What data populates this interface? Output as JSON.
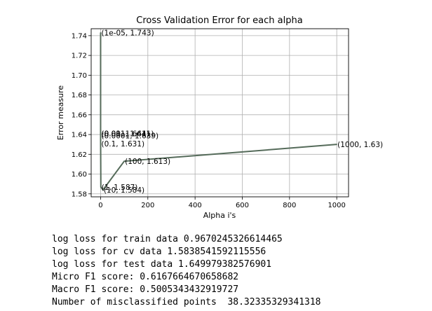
{
  "chart_data": {
    "type": "line",
    "title": "Cross Validation Error for each alpha",
    "xlabel": "Alpha i's",
    "ylabel": "Error measure",
    "xlim": [
      -40,
      1050
    ],
    "ylim": [
      1.577,
      1.747
    ],
    "x_ticks": [
      0,
      200,
      400,
      600,
      800,
      1000
    ],
    "x_tick_labels": [
      "0",
      "200",
      "400",
      "600",
      "800",
      "1000"
    ],
    "y_ticks": [
      1.58,
      1.6,
      1.62,
      1.64,
      1.66,
      1.68,
      1.7,
      1.72,
      1.74
    ],
    "y_tick_labels": [
      "1.58",
      "1.60",
      "1.62",
      "1.64",
      "1.66",
      "1.68",
      "1.70",
      "1.72",
      "1.74"
    ],
    "grid": true,
    "series": [
      {
        "x": [
          1e-05,
          0.0001,
          0.001,
          0.01,
          0.1,
          1,
          10,
          100,
          1000
        ],
        "y": [
          1.743,
          1.639,
          1.641,
          1.641,
          1.631,
          1.587,
          1.584,
          1.613,
          1.63
        ],
        "color": "#556b5a"
      }
    ],
    "annotations": [
      "(1e-05, 1.743)",
      "(0.0001, 1.639)",
      "(0.001, 1.641)",
      "(0.01, 1.641)",
      "(0.1, 1.631)",
      "(1, 1.587)",
      "(10, 1.584)",
      "(100, 1.613)",
      "(1000, 1.63)"
    ]
  },
  "output_lines": [
    "log loss for train data 0.9670245326614465",
    "log loss for cv data 1.5838541592115556",
    "log loss for test data 1.649979382576901",
    "Micro F1 score: 0.6167664670658682",
    "Macro F1 score: 0.5005343432919727",
    "Number of misclassified points  38.32335329341318"
  ]
}
